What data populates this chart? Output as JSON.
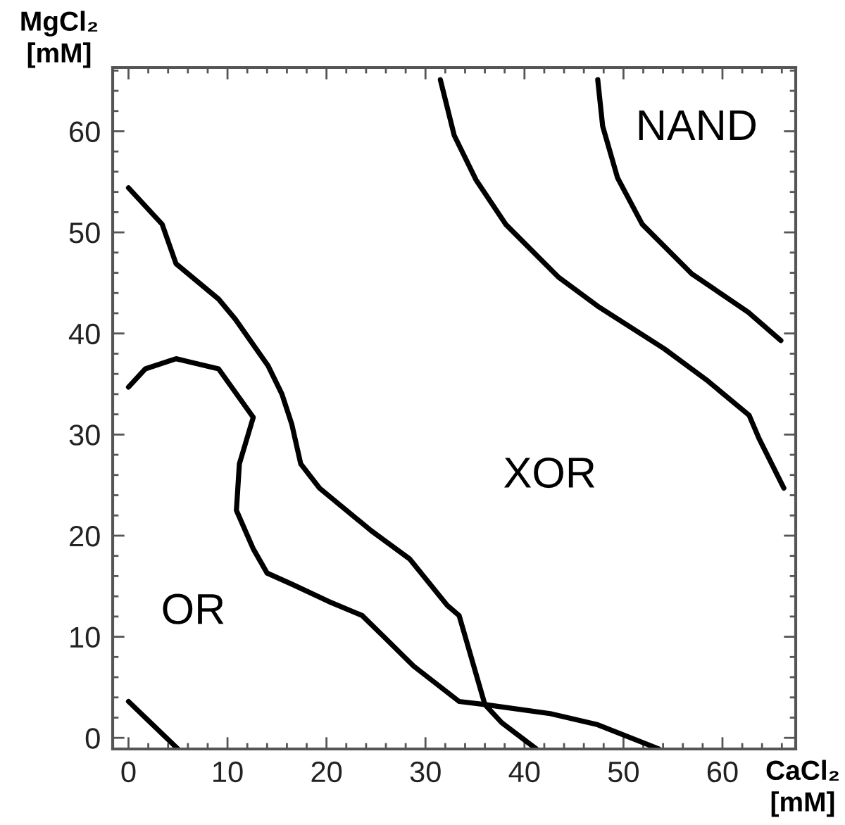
{
  "chart_data": {
    "type": "line",
    "xlabel": "CaCl₂\n[mM]",
    "ylabel": "MgCl₂\n[mM]",
    "xlim": [
      -1.6,
      67.4
    ],
    "ylim": [
      -1.1,
      66.3
    ],
    "xticks": [
      0,
      {
        "value": 2,
        "label": null
      },
      {
        "value": 4,
        "label": null
      },
      {
        "value": 6,
        "label": null
      },
      {
        "value": 8,
        "label": null
      },
      10,
      {
        "value": 12,
        "label": null
      },
      {
        "value": 14,
        "label": null
      },
      {
        "value": 16,
        "label": null
      },
      {
        "value": 18,
        "label": null
      },
      20,
      {
        "value": 22,
        "label": null
      },
      {
        "value": 24,
        "label": null
      },
      {
        "value": 26,
        "label": null
      },
      {
        "value": 28,
        "label": null
      },
      30,
      {
        "value": 32,
        "label": null
      },
      {
        "value": 34,
        "label": null
      },
      {
        "value": 36,
        "label": null
      },
      {
        "value": 38,
        "label": null
      },
      40,
      {
        "value": 42,
        "label": null
      },
      {
        "value": 44,
        "label": null
      },
      {
        "value": 46,
        "label": null
      },
      {
        "value": 48,
        "label": null
      },
      50,
      {
        "value": 52,
        "label": null
      },
      {
        "value": 54,
        "label": null
      },
      {
        "value": 56,
        "label": null
      },
      {
        "value": 58,
        "label": null
      },
      60,
      {
        "value": 62,
        "label": null
      },
      {
        "value": 64,
        "label": null
      },
      {
        "value": 66,
        "label": null
      }
    ],
    "yticks": [
      0,
      {
        "value": 2,
        "label": null
      },
      {
        "value": 4,
        "label": null
      },
      {
        "value": 6,
        "label": null
      },
      {
        "value": 8,
        "label": null
      },
      10,
      {
        "value": 12,
        "label": null
      },
      {
        "value": 14,
        "label": null
      },
      {
        "value": 16,
        "label": null
      },
      {
        "value": 18,
        "label": null
      },
      20,
      {
        "value": 22,
        "label": null
      },
      {
        "value": 24,
        "label": null
      },
      {
        "value": 26,
        "label": null
      },
      {
        "value": 28,
        "label": null
      },
      30,
      {
        "value": 32,
        "label": null
      },
      {
        "value": 34,
        "label": null
      },
      {
        "value": 36,
        "label": null
      },
      {
        "value": 38,
        "label": null
      },
      40,
      {
        "value": 42,
        "label": null
      },
      {
        "value": 44,
        "label": null
      },
      {
        "value": 46,
        "label": null
      },
      {
        "value": 48,
        "label": null
      },
      50,
      {
        "value": 52,
        "label": null
      },
      {
        "value": 54,
        "label": null
      },
      {
        "value": 56,
        "label": null
      },
      {
        "value": 58,
        "label": null
      },
      60,
      {
        "value": 62,
        "label": null
      },
      {
        "value": 64,
        "label": null
      },
      {
        "value": 66,
        "label": null
      }
    ],
    "grid": false,
    "legend": false,
    "marker": "none",
    "line_style": "solid",
    "series": [
      {
        "color": "#000000",
        "x": [
          0,
          3.4,
          4.8,
          9.1,
          10.8,
          14.1,
          15.5,
          16.5,
          17.4,
          19.3,
          24.5,
          28.4,
          32.2,
          33.4,
          36,
          37.7,
          41.2
        ],
        "values": [
          54.4,
          50.8,
          46.9,
          43.4,
          41.4,
          36.8,
          34,
          31,
          27.1,
          24.7,
          20.5,
          17.7,
          13.1,
          12.1,
          3.3,
          1.5,
          -1.1
        ]
      },
      {
        "color": "#000000",
        "x": [
          0,
          1.7,
          4.8,
          9.1,
          12.6,
          11.2,
          10.9,
          12.6,
          14,
          16.5,
          20.2,
          23.6,
          25.9,
          28.8,
          33.4,
          36,
          42.6,
          47.4,
          53.6
        ],
        "values": [
          34.7,
          36.5,
          37.5,
          36.5,
          31.7,
          27.1,
          22.5,
          18.7,
          16.3,
          15.2,
          13.5,
          12.1,
          9.9,
          7.1,
          3.6,
          3.3,
          2.4,
          1.3,
          -1.1
        ]
      },
      {
        "color": "#000000",
        "x": [
          31.5,
          32.9,
          35.1,
          38.1,
          43.4,
          47.4,
          54.1,
          58.4,
          62.7,
          63.7,
          66.2
        ],
        "values": [
          65.1,
          59.6,
          55.2,
          50.8,
          45.6,
          42.7,
          38.5,
          35.4,
          31.9,
          29.6,
          24.7
        ]
      },
      {
        "color": "#000000",
        "x": [
          47.4,
          47.9,
          49.4,
          51.9,
          56.9,
          62.6,
          65.9
        ],
        "values": [
          65.1,
          60.5,
          55.4,
          50.8,
          45.9,
          42.1,
          39.3
        ]
      },
      {
        "color": "#000000",
        "x": [
          0,
          5
        ],
        "values": [
          3.6,
          -1.1
        ]
      }
    ],
    "annotations": [
      "OR",
      "XOR",
      "NAND"
    ]
  }
}
